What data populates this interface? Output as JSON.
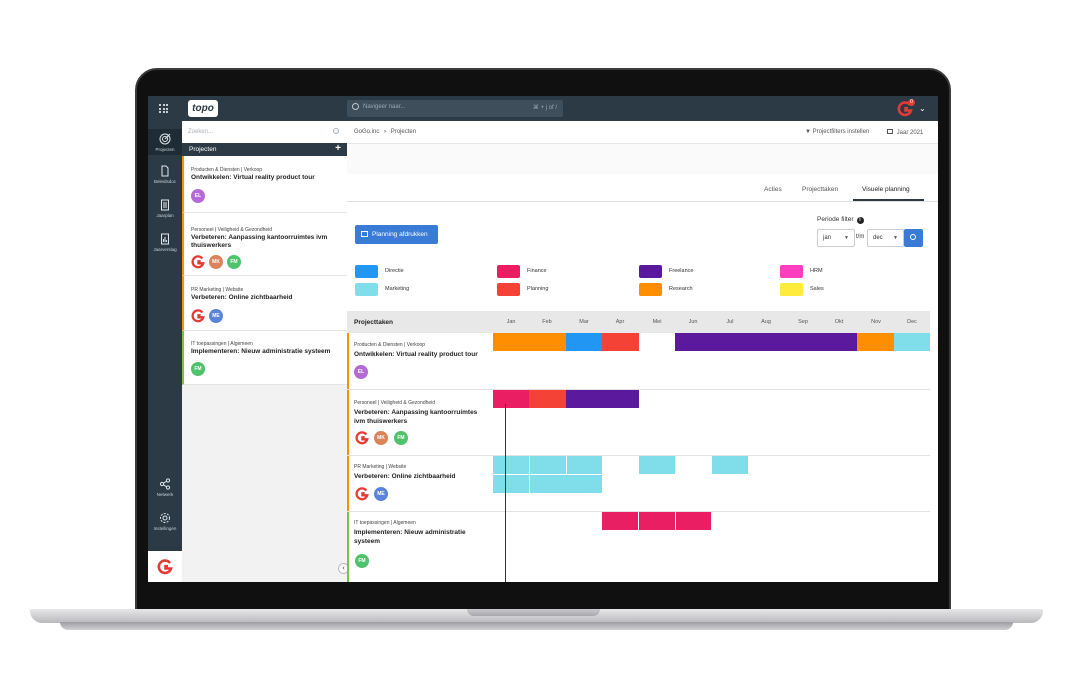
{
  "topbar": {
    "logo_text": "topo",
    "search_placeholder": "Navigeer naar...",
    "search_shortcut": "⌘ + j of /",
    "notification_count": "0"
  },
  "leftnav": {
    "items": [
      {
        "label": "Projecten",
        "icon": "target-icon"
      },
      {
        "label": "Beleidsdoc",
        "icon": "document-icon"
      },
      {
        "label": "Jaarplan",
        "icon": "list-document-icon"
      },
      {
        "label": "Jaarverslag",
        "icon": "chart-document-icon"
      },
      {
        "label": "Netwerk",
        "icon": "share-network-icon"
      },
      {
        "label": "Instellingen",
        "icon": "gear-icon"
      }
    ]
  },
  "projectlist": {
    "search_placeholder": "Zoeken...",
    "header": "Projecten",
    "cards": [
      {
        "category": "Producten & Diensten | Verkoop",
        "title": "Ontwikkelen: Virtual reality product tour",
        "border": "#ff8f00",
        "avatars": [
          {
            "initials": "EL",
            "color": "#b56bd6"
          }
        ],
        "logo": false
      },
      {
        "category": "Personeel | Veiligheid & Gezondheid",
        "title": "Verbeteren: Aanpassing kantoorruimtes ivm thuiswerkers",
        "border": "#ff8f00",
        "avatars": [
          {
            "initials": "MK",
            "color": "#d9845a"
          },
          {
            "initials": "FM",
            "color": "#4fc26b"
          }
        ],
        "logo": true
      },
      {
        "category": "PR Marketing | Website",
        "title": "Verbeteren: Online zichtbaarheid",
        "border": "#ff8f00",
        "avatars": [
          {
            "initials": "ME",
            "color": "#5b84d8"
          }
        ],
        "logo": true
      },
      {
        "category": "IT toepassingen | Algemeen",
        "title": "Implementeren: Nieuw administratie systeem",
        "border": "#7cc242",
        "avatars": [
          {
            "initials": "FM",
            "color": "#4fc26b"
          }
        ],
        "logo": false
      }
    ]
  },
  "main": {
    "breadcrumb_org": "GoGo.inc",
    "breadcrumb_page": "Projecten",
    "filters_link": "Projectfilters instellen",
    "year_link": "Jaar 2021",
    "tabs": [
      {
        "label": "Acties"
      },
      {
        "label": "Projecttaken"
      },
      {
        "label": "Visuele planning"
      }
    ],
    "print_button": "Planning afdrukken",
    "period_filter_label": "Periode filter",
    "period_from": "jan",
    "period_separator": "t/m",
    "period_to": "dec",
    "legend": [
      {
        "label": "Directie",
        "color": "#2196f3"
      },
      {
        "label": "Finance",
        "color": "#e91e63"
      },
      {
        "label": "Freelance",
        "color": "#5b1a9e"
      },
      {
        "label": "HRM",
        "color": "#ff3fbf"
      },
      {
        "label": "Marketing",
        "color": "#80deea"
      },
      {
        "label": "Planning",
        "color": "#f44336"
      },
      {
        "label": "Research",
        "color": "#ff8f00"
      },
      {
        "label": "Sales",
        "color": "#ffeb3b"
      }
    ],
    "gantt": {
      "header": "Projecttaken",
      "months": [
        "Jan",
        "Feb",
        "Mar",
        "Apr",
        "Mei",
        "Jun",
        "Jul",
        "Aug",
        "Sep",
        "Okt",
        "Nov",
        "Dec"
      ]
    }
  }
}
